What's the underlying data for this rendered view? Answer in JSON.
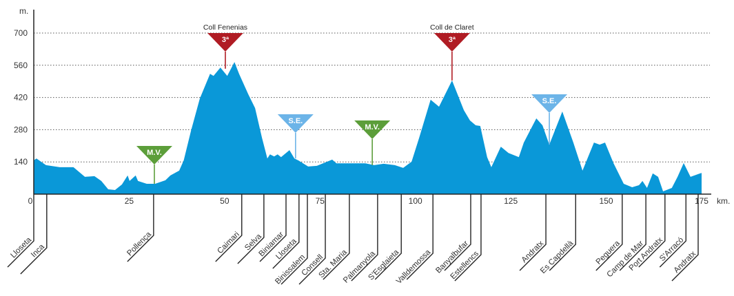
{
  "chart_data": {
    "type": "area",
    "xlabel": "km.",
    "ylabel": "m.",
    "xlim": [
      0,
      176
    ],
    "ylim": [
      0,
      760
    ],
    "x_ticks": [
      0,
      25,
      50,
      75,
      100,
      125,
      150,
      175
    ],
    "y_ticks": [
      140,
      280,
      420,
      560,
      700
    ],
    "grid": "horizontal dotted",
    "colors": {
      "profile": "#0a98d8",
      "climb": "#b01c24",
      "mv": "#5c9e3a",
      "se": "#6cb4e8",
      "axis": "#222222"
    },
    "profile": [
      [
        0,
        147
      ],
      [
        0.7,
        155
      ],
      [
        3.2,
        126
      ],
      [
        6.8,
        117
      ],
      [
        10.4,
        117
      ],
      [
        13.4,
        75
      ],
      [
        15.9,
        78
      ],
      [
        17.7,
        57
      ],
      [
        19.5,
        21
      ],
      [
        21.3,
        18
      ],
      [
        23.1,
        42
      ],
      [
        24.6,
        81
      ],
      [
        25.1,
        57
      ],
      [
        26.7,
        81
      ],
      [
        27.3,
        57
      ],
      [
        29.6,
        45
      ],
      [
        31.8,
        45
      ],
      [
        34.5,
        60
      ],
      [
        35.8,
        81
      ],
      [
        38.1,
        102
      ],
      [
        39.3,
        147
      ],
      [
        41.2,
        275
      ],
      [
        43.5,
        415
      ],
      [
        46.2,
        523
      ],
      [
        47.1,
        514
      ],
      [
        48.9,
        550
      ],
      [
        50.7,
        514
      ],
      [
        52.6,
        574
      ],
      [
        53.8,
        523
      ],
      [
        56.2,
        434
      ],
      [
        58,
        374
      ],
      [
        59.8,
        245
      ],
      [
        61.2,
        155
      ],
      [
        61.9,
        173
      ],
      [
        63,
        164
      ],
      [
        63.9,
        173
      ],
      [
        64.8,
        161
      ],
      [
        67,
        191
      ],
      [
        68.3,
        155
      ],
      [
        69.4,
        146
      ],
      [
        71.9,
        120
      ],
      [
        74.2,
        123
      ],
      [
        78.2,
        150
      ],
      [
        79.3,
        134
      ],
      [
        83.3,
        134
      ],
      [
        86.9,
        134
      ],
      [
        89.2,
        126
      ],
      [
        91.7,
        132
      ],
      [
        94.6,
        126
      ],
      [
        96.8,
        114
      ],
      [
        99,
        141
      ],
      [
        101,
        245
      ],
      [
        104,
        410
      ],
      [
        106.2,
        380
      ],
      [
        109.6,
        494
      ],
      [
        112.7,
        365
      ],
      [
        114.3,
        320
      ],
      [
        115.8,
        299
      ],
      [
        117,
        296
      ],
      [
        118.8,
        161
      ],
      [
        119.9,
        117
      ],
      [
        122.4,
        206
      ],
      [
        124.4,
        179
      ],
      [
        127.1,
        161
      ],
      [
        128.4,
        224
      ],
      [
        131.7,
        329
      ],
      [
        133.3,
        299
      ],
      [
        135.1,
        215
      ],
      [
        138.5,
        359
      ],
      [
        141.4,
        224
      ],
      [
        143.8,
        102
      ],
      [
        146.8,
        224
      ],
      [
        148.3,
        215
      ],
      [
        149.7,
        224
      ],
      [
        151.9,
        135
      ],
      [
        154.6,
        45
      ],
      [
        156.8,
        30
      ],
      [
        158.6,
        39
      ],
      [
        159.5,
        57
      ],
      [
        160.7,
        27
      ],
      [
        162.2,
        90
      ],
      [
        163.6,
        75
      ],
      [
        164.9,
        12
      ],
      [
        167.2,
        27
      ],
      [
        168.7,
        75
      ],
      [
        170.3,
        135
      ],
      [
        172.1,
        75
      ],
      [
        174.1,
        87
      ],
      [
        175,
        92
      ]
    ],
    "markers": [
      {
        "type": "mv",
        "label": "M.V.",
        "km": 31.6,
        "elev": 45
      },
      {
        "type": "climb",
        "label": "3ª",
        "name": "Coll Fenenias",
        "km": 50.2,
        "elev": 545
      },
      {
        "type": "se",
        "label": "S.E.",
        "km": 68.6,
        "elev": 155
      },
      {
        "type": "mv",
        "label": "M.V.",
        "km": 88.7,
        "elev": 126
      },
      {
        "type": "climb",
        "label": "3ª",
        "name": "Coll de Claret",
        "km": 109.6,
        "elev": 494
      },
      {
        "type": "se",
        "label": "S.E.",
        "km": 135.1,
        "elev": 215
      }
    ],
    "towns": [
      {
        "name": "Lloseta",
        "km": 0
      },
      {
        "name": "Inca",
        "km": 3.4
      },
      {
        "name": "Pollença",
        "km": 31.4
      },
      {
        "name": "Caimari",
        "km": 54.5
      },
      {
        "name": "Selva",
        "km": 60.3
      },
      {
        "name": "Biniamar",
        "km": 66.1
      },
      {
        "name": "Lloseta",
        "km": 69.5
      },
      {
        "name": "Binissalem",
        "km": 71.7
      },
      {
        "name": "Consell",
        "km": 76.4
      },
      {
        "name": "Sta. Maria",
        "km": 82.7
      },
      {
        "name": "Palmanyola",
        "km": 90.1
      },
      {
        "name": "S'Esglaieta",
        "km": 96.3
      },
      {
        "name": "Valldemossa",
        "km": 104.6
      },
      {
        "name": "Banyalbufar",
        "km": 114.5
      },
      {
        "name": "Estellencs",
        "km": 117.2
      },
      {
        "name": "Andratx",
        "km": 134.2
      },
      {
        "name": "Es Capdellà",
        "km": 142
      },
      {
        "name": "Peguera",
        "km": 154.2
      },
      {
        "name": "Camp de Mar",
        "km": 160.4
      },
      {
        "name": "Port Andratx",
        "km": 165.4
      },
      {
        "name": "S'Arracó",
        "km": 170.9
      },
      {
        "name": "Andratx",
        "km": 174.1
      }
    ]
  }
}
